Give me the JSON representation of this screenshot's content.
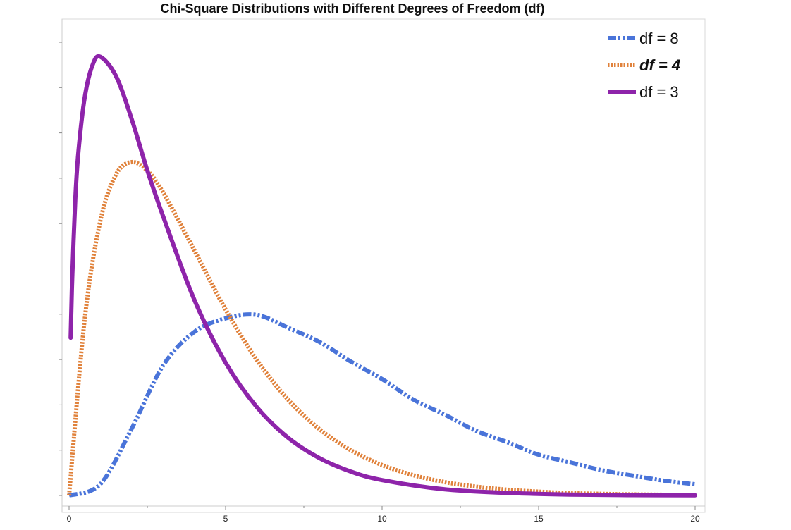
{
  "chart_data": {
    "type": "line",
    "title": "Chi-Square Distributions with Different Degrees of Freedom (df)",
    "xlabel": "",
    "ylabel": "",
    "xlim": [
      0,
      20
    ],
    "ylim": [
      0,
      0.25
    ],
    "x_ticks": [
      0,
      5,
      10,
      15,
      20
    ],
    "y_tick_labels_shown": false,
    "grid": false,
    "legend_position": "top-right",
    "series": [
      {
        "name": "df = 8",
        "df": 8,
        "color": "#4a74d9",
        "style": "dash-dot",
        "x": [
          0,
          1,
          2,
          3,
          4,
          5,
          6,
          7,
          8,
          9,
          10,
          11,
          12,
          13,
          14,
          15,
          16,
          17,
          18,
          19,
          20
        ],
        "y": [
          0,
          0.0063,
          0.0369,
          0.0716,
          0.0902,
          0.0977,
          0.0996,
          0.0925,
          0.0847,
          0.0739,
          0.0642,
          0.0529,
          0.0446,
          0.0357,
          0.0294,
          0.0225,
          0.0183,
          0.014,
          0.011,
          0.0082,
          0.0062
        ]
      },
      {
        "name": "df = 4",
        "df": 4,
        "color": "#e0813a",
        "style": "dotted",
        "label_style": "bold-italic",
        "x": [
          0,
          0.5,
          1,
          1.5,
          2,
          2.5,
          3,
          4,
          5,
          6,
          7,
          8,
          9,
          10,
          11,
          12,
          13,
          14,
          15,
          16,
          17,
          18,
          19,
          20
        ],
        "y": [
          0,
          0.0974,
          0.1516,
          0.1771,
          0.1839,
          0.1791,
          0.1673,
          0.1353,
          0.1026,
          0.0747,
          0.0528,
          0.0366,
          0.025,
          0.0168,
          0.0112,
          0.0074,
          0.0049,
          0.0032,
          0.0021,
          0.0013,
          0.0009,
          0.0006,
          0.0004,
          0.0002
        ]
      },
      {
        "name": "df = 3",
        "df": 3,
        "color": "#8e24aa",
        "style": "solid",
        "x": [
          0.05,
          0.1,
          0.2,
          0.3,
          0.5,
          0.75,
          1,
          1.5,
          2,
          2.5,
          3,
          4,
          5,
          6,
          7,
          8,
          9,
          10,
          12,
          14,
          16,
          18,
          20
        ],
        "y": [
          0.087,
          0.12,
          0.164,
          0.19,
          0.2197,
          0.2375,
          0.242,
          0.2313,
          0.2076,
          0.1793,
          0.1542,
          0.108,
          0.0733,
          0.0487,
          0.0318,
          0.0206,
          0.0132,
          0.0085,
          0.0034,
          0.0014,
          0.0005,
          0.0002,
          0.0001
        ]
      }
    ]
  }
}
